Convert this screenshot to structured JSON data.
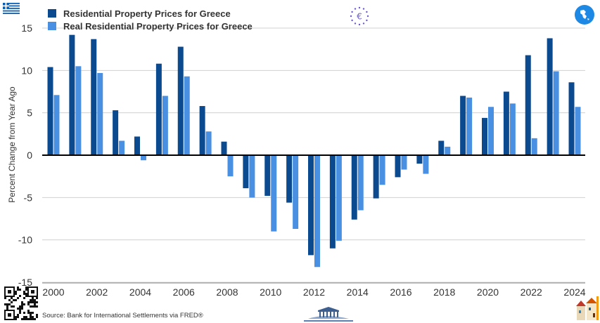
{
  "chart_data": {
    "type": "bar",
    "x": [
      2000,
      2001,
      2002,
      2003,
      2004,
      2005,
      2006,
      2007,
      2008,
      2009,
      2010,
      2011,
      2012,
      2013,
      2014,
      2015,
      2016,
      2017,
      2018,
      2019,
      2020,
      2021,
      2022,
      2023,
      2024
    ],
    "x_ticks": [
      "2000",
      "2002",
      "2004",
      "2006",
      "2008",
      "2010",
      "2012",
      "2014",
      "2016",
      "2018",
      "2020",
      "2022",
      "2024"
    ],
    "series": [
      {
        "name": "Residential Property Prices for Greece",
        "color": "#0c4a8f",
        "values": [
          10.4,
          14.2,
          13.7,
          5.3,
          2.2,
          10.8,
          12.8,
          5.8,
          1.6,
          -3.9,
          -4.8,
          -5.6,
          -11.8,
          -11.0,
          -7.6,
          -5.1,
          -2.6,
          -1.0,
          1.7,
          7.0,
          4.4,
          7.5,
          11.8,
          13.8,
          8.6
        ]
      },
      {
        "name": "Real Residential Property Prices for Greece",
        "color": "#4a90e2",
        "values": [
          7.1,
          10.5,
          9.7,
          1.7,
          -0.6,
          7.0,
          9.3,
          2.8,
          -2.5,
          -5.0,
          -9.0,
          -8.7,
          -13.2,
          -10.1,
          -6.5,
          -3.5,
          -1.7,
          -2.2,
          1.0,
          6.8,
          5.7,
          6.1,
          2.0,
          9.9,
          5.7
        ]
      }
    ],
    "ylim": [
      -15,
      15
    ],
    "y_ticks": [
      "15",
      "10",
      "5",
      "0",
      "-5",
      "-10",
      "-15"
    ],
    "ylabel": "Percent Change from Year Ago",
    "xlabel": "",
    "grid": true,
    "legend_position": "top-left"
  },
  "footer": {
    "source": "Source: Bank for International Settlements via FRED®"
  },
  "icons": {
    "flag": "greek-flag-icon",
    "eu": "euro-stars-icon",
    "map": "greece-map-icon",
    "qr": "qr-code-icon",
    "monument": "parthenon-icon",
    "houses": "houses-icon"
  }
}
